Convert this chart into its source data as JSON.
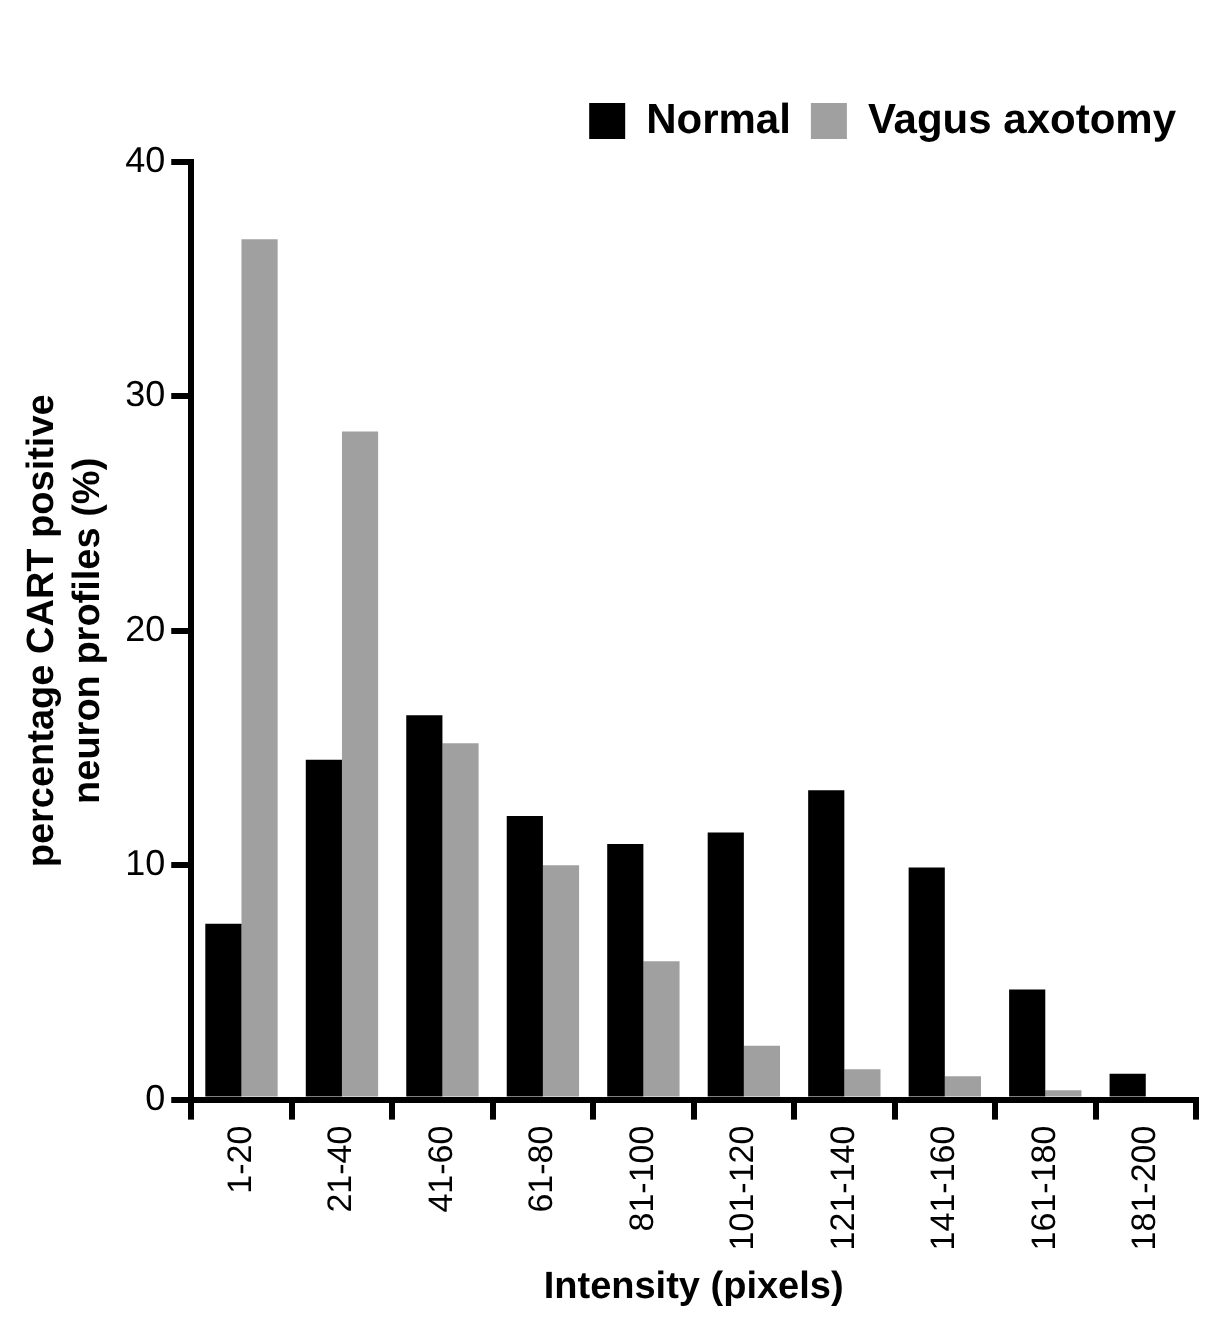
{
  "chart_data": {
    "type": "bar",
    "xlabel": "Intensity (pixels)",
    "ylabel": "percentage CART positive\nneuron profiles (%)",
    "categories": [
      "1-20",
      "21-40",
      "41-60",
      "61-80",
      "81-100",
      "101-120",
      "121-140",
      "141-160",
      "161-180",
      "181-200"
    ],
    "series": [
      {
        "name": "Normal",
        "color": "#000000",
        "values": [
          7.5,
          14.5,
          16.4,
          12.1,
          10.9,
          11.4,
          13.2,
          9.9,
          4.7,
          1.1
        ]
      },
      {
        "name": "Vagus axotomy",
        "color": "#a0a0a0",
        "values": [
          36.7,
          28.5,
          15.2,
          10,
          5.9,
          2.3,
          1.3,
          1,
          0.4,
          0
        ]
      }
    ],
    "ylim": [
      0,
      40
    ],
    "yticks": [
      0,
      10,
      20,
      30,
      40
    ],
    "grid": false,
    "legend": "top right"
  }
}
